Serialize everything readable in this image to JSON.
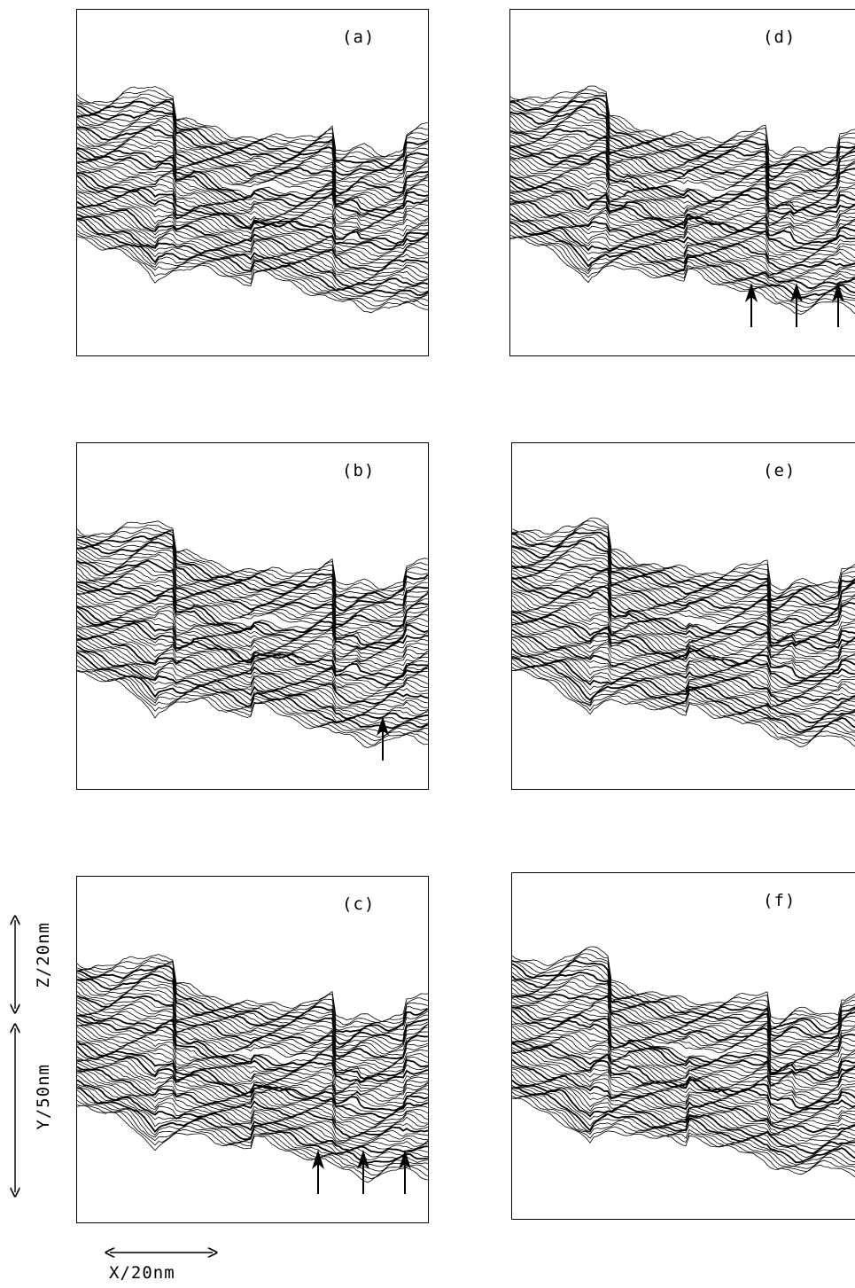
{
  "figure": {
    "panels": [
      {
        "id": "a",
        "label": "(a)",
        "arrows": 0
      },
      {
        "id": "b",
        "label": "(b)",
        "arrows": 1
      },
      {
        "id": "c",
        "label": "(c)",
        "arrows": 3
      },
      {
        "id": "d",
        "label": "(d)",
        "arrows": 3
      },
      {
        "id": "e",
        "label": "(e)",
        "arrows": 0
      },
      {
        "id": "f",
        "label": "(f)",
        "arrows": 0
      }
    ],
    "scale": {
      "x_label": "X/20nm",
      "y_label": "Y/50nm",
      "z_label": "Z/20nm"
    },
    "line_color": "#000000"
  }
}
